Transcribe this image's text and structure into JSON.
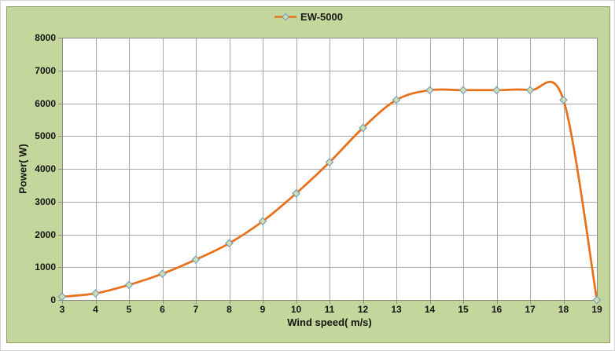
{
  "legend": {
    "label": "EW-5000"
  },
  "axes": {
    "x_title": "Wind speed( m/s)",
    "y_title": "Power( W)"
  },
  "colors": {
    "chart_bg": "#C3D69B",
    "chart_border": "#8E9C63",
    "plot_bg": "#FFFFFF",
    "grid": "#A8A8A8",
    "axis": "#8A8A8A",
    "series": "#E8721C",
    "marker_fill": "#CFDFA7",
    "marker_stroke": "#7B9FC7",
    "text": "#141414"
  },
  "chart_data": {
    "type": "line",
    "title": "",
    "x": [
      3,
      4,
      5,
      6,
      7,
      8,
      9,
      10,
      11,
      12,
      13,
      14,
      15,
      16,
      17,
      18,
      19
    ],
    "series": [
      {
        "name": "EW-5000",
        "values": [
          100,
          200,
          460,
          800,
          1230,
          1730,
          2400,
          3250,
          4200,
          5250,
          6100,
          6400,
          6400,
          6400,
          6400,
          6100,
          0
        ]
      }
    ],
    "xlabel": "Wind speed( m/s)",
    "ylabel": "Power( W)",
    "xlim": [
      3,
      19
    ],
    "ylim": [
      0,
      8000
    ],
    "x_ticks": [
      3,
      4,
      5,
      6,
      7,
      8,
      9,
      10,
      11,
      12,
      13,
      14,
      15,
      16,
      17,
      18,
      19
    ],
    "y_ticks": [
      0,
      1000,
      2000,
      3000,
      4000,
      5000,
      6000,
      7000,
      8000
    ],
    "grid": true,
    "legend_position": "top-center",
    "line_shape": "smooth",
    "marker": "diamond"
  }
}
